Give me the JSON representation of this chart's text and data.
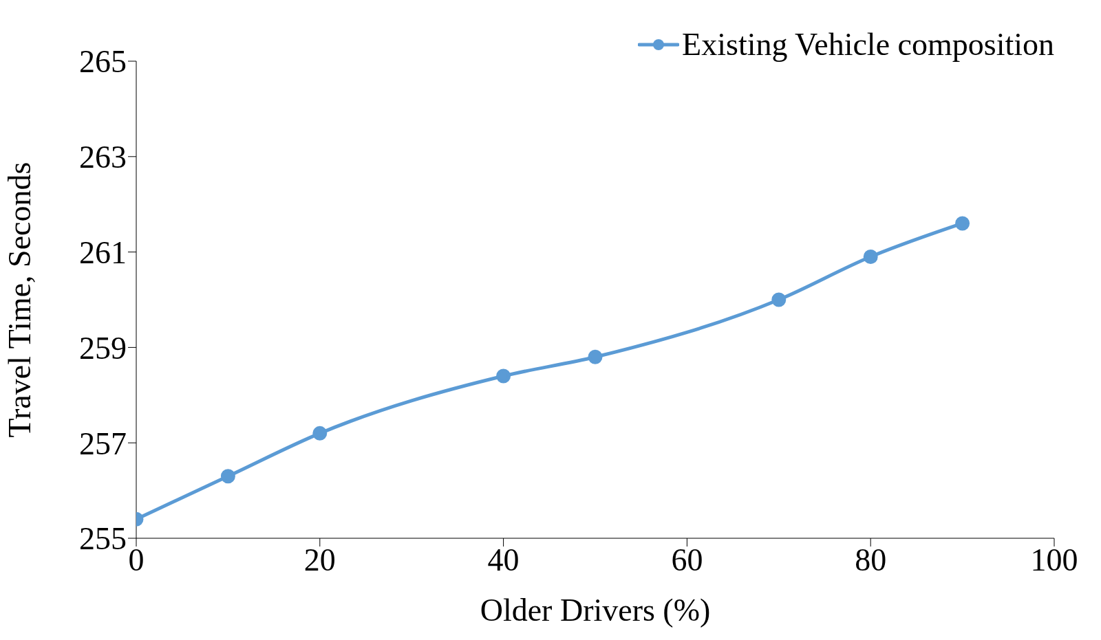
{
  "chart_data": {
    "type": "line",
    "xlabel": "Older Drivers (%)",
    "ylabel": "Travel Time, Seconds",
    "x": [
      0,
      10,
      20,
      40,
      50,
      70,
      80,
      90
    ],
    "series": [
      {
        "name": "Existing Vehicle composition",
        "color": "#5b9bd5",
        "values": [
          255.4,
          256.3,
          257.2,
          258.4,
          258.8,
          260.0,
          260.9,
          261.6
        ]
      }
    ],
    "xlim": [
      0,
      100
    ],
    "xticks": [
      0,
      20,
      40,
      60,
      80,
      100
    ],
    "ylim": [
      255,
      265
    ],
    "yticks": [
      255,
      257,
      259,
      261,
      263,
      265
    ],
    "grid": false,
    "legend": "top right",
    "marker": "circle",
    "line_style": "solid"
  }
}
